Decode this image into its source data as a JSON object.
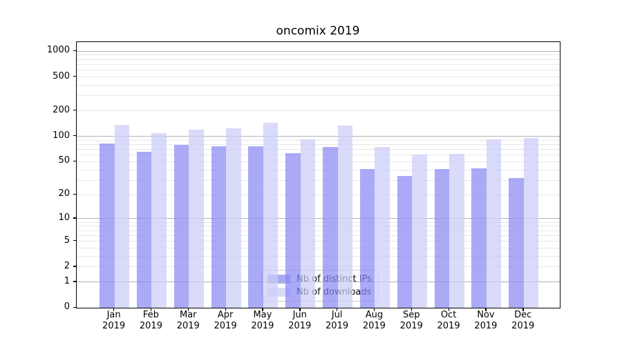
{
  "chart_data": {
    "type": "bar",
    "title": "oncomix 2019",
    "categories": [
      "Jan 2019",
      "Feb 2019",
      "Mar 2019",
      "Apr 2019",
      "May 2019",
      "Jun 2019",
      "Jul 2019",
      "Aug 2019",
      "Sep 2019",
      "Oct 2019",
      "Nov 2019",
      "Dec 2019"
    ],
    "series": [
      {
        "name": "Nb of distinct IPs",
        "color": "#8989f4",
        "alpha": 0.72,
        "values": [
          83,
          66,
          79,
          77,
          76,
          63,
          75,
          41,
          34,
          41,
          42,
          32
        ]
      },
      {
        "name": "Nb of downloads",
        "color": "#ccccf8",
        "alpha": 0.72,
        "values": [
          136,
          109,
          121,
          125,
          144,
          92,
          134,
          75,
          61,
          62,
          93,
          96
        ]
      }
    ],
    "xlabel": "",
    "ylabel": "",
    "yscale": "log1p",
    "ylim": [
      0,
      1280
    ],
    "y_tick_values": [
      0,
      1,
      2,
      5,
      10,
      20,
      50,
      100,
      200,
      500,
      1000
    ],
    "grid_major_values": [
      1,
      10,
      100,
      1000
    ],
    "grid_minor_values": [
      2,
      3,
      4,
      5,
      6,
      7,
      8,
      9,
      20,
      30,
      40,
      50,
      60,
      70,
      80,
      90,
      200,
      300,
      400,
      500,
      600,
      700,
      800,
      900
    ],
    "grid_major_color": "#b2b2b2",
    "grid_minor_color": "#e7e7e7",
    "legend_position": "lower center",
    "legend_entries": [
      "Nb of distinct IPs",
      "Nb of downloads"
    ]
  }
}
